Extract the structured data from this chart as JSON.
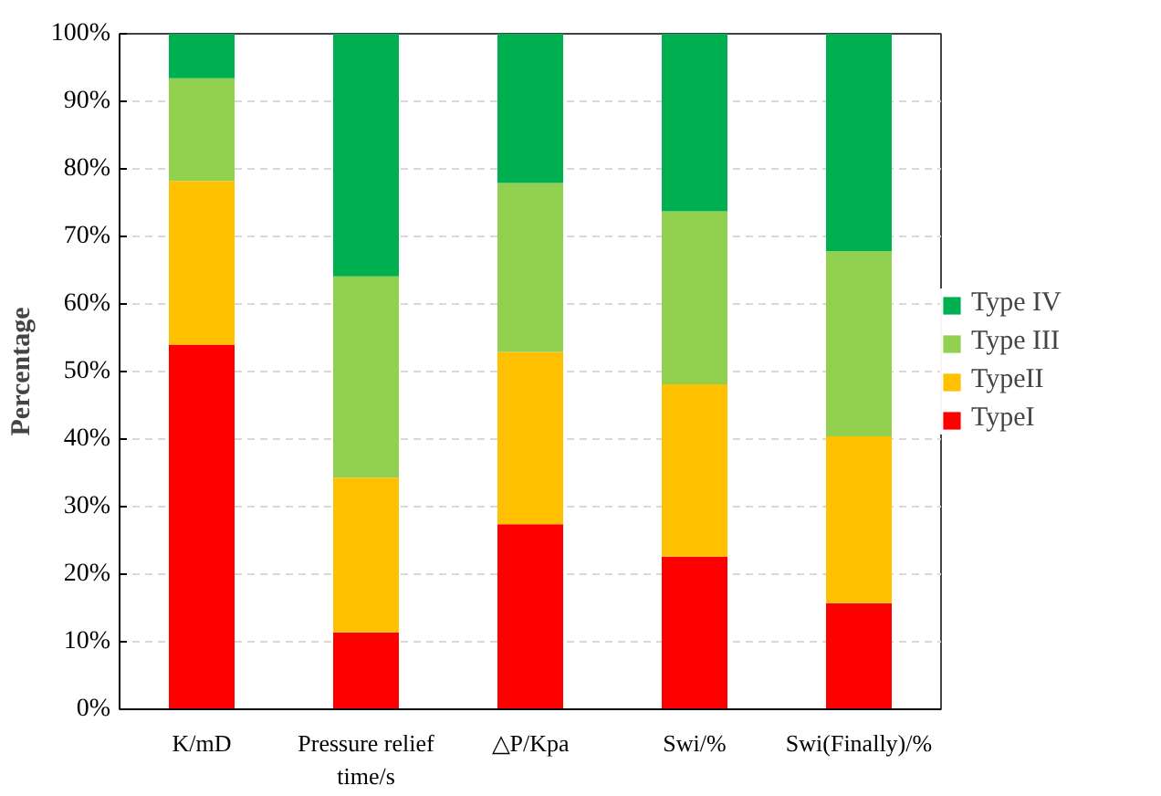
{
  "chart_data": {
    "type": "bar",
    "stacked": true,
    "ylabel": "Percentage",
    "categories": [
      "K/mD",
      "Pressure relief time/s",
      "△P/Kpa",
      "Swi/%",
      "Swi(Finally)/%"
    ],
    "series": [
      {
        "name": "TypeI",
        "color": "#ff0000",
        "values": [
          54.0,
          11.4,
          27.4,
          22.6,
          15.7
        ]
      },
      {
        "name": "TypeII",
        "color": "#ffc000",
        "values": [
          24.2,
          22.9,
          25.5,
          25.5,
          24.7
        ]
      },
      {
        "name": "Type III",
        "color": "#92d050",
        "values": [
          15.2,
          29.8,
          25.0,
          25.6,
          27.4
        ]
      },
      {
        "name": "Type IV",
        "color": "#00b050",
        "values": [
          6.6,
          35.9,
          22.1,
          26.3,
          32.2
        ]
      }
    ],
    "ylim": [
      0,
      100
    ],
    "yticks": [
      {
        "value": 0,
        "label": "0%"
      },
      {
        "value": 10,
        "label": "10%"
      },
      {
        "value": 20,
        "label": "20%"
      },
      {
        "value": 30,
        "label": "30%"
      },
      {
        "value": 40,
        "label": "40%"
      },
      {
        "value": 50,
        "label": "50%"
      },
      {
        "value": 60,
        "label": "60%"
      },
      {
        "value": 70,
        "label": "70%"
      },
      {
        "value": 80,
        "label": "80%"
      },
      {
        "value": 90,
        "label": "90%"
      },
      {
        "value": 100,
        "label": "100%"
      }
    ],
    "grid": "y",
    "legend": "right"
  }
}
